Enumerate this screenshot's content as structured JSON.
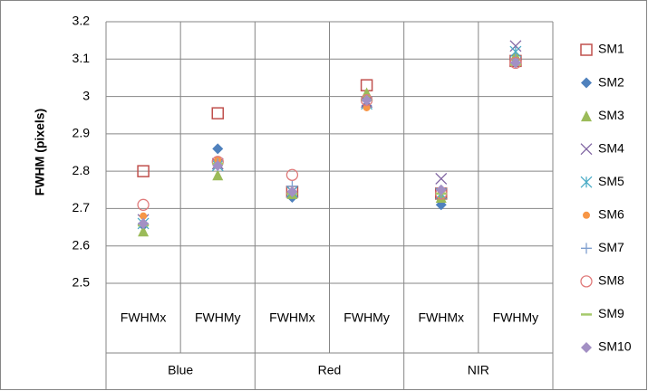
{
  "chart_data": {
    "type": "scatter",
    "y_label": "FWHM (pixels)",
    "categories": [
      "FWHMx",
      "FWHMy",
      "FWHMx",
      "FWHMy",
      "FWHMx",
      "FWHMy"
    ],
    "category_groups": [
      "Blue",
      "Red",
      "NIR"
    ],
    "ylim": [
      2.5,
      3.2
    ],
    "yticks": [
      2.5,
      2.6,
      2.7,
      2.8,
      2.9,
      3,
      3.1,
      3.2
    ],
    "grid": true,
    "legend": "right",
    "series": [
      {
        "name": "SM1",
        "color": "#c0504d",
        "marker": "square-open",
        "values": [
          2.8,
          2.955,
          2.745,
          3.03,
          2.74,
          3.095
        ]
      },
      {
        "name": "SM2",
        "color": "#4f81bd",
        "marker": "diamond",
        "values": [
          2.655,
          2.86,
          2.73,
          2.975,
          2.71,
          3.09
        ]
      },
      {
        "name": "SM3",
        "color": "#9bbb59",
        "marker": "triangle",
        "values": [
          2.64,
          2.79,
          2.74,
          3.01,
          2.73,
          3.11
        ]
      },
      {
        "name": "SM4",
        "color": "#8064a2",
        "marker": "x",
        "values": [
          2.67,
          2.82,
          2.745,
          2.985,
          2.78,
          3.135
        ]
      },
      {
        "name": "SM5",
        "color": "#4bacc6",
        "marker": "star",
        "values": [
          2.66,
          2.815,
          2.745,
          2.98,
          2.74,
          3.12
        ]
      },
      {
        "name": "SM6",
        "color": "#f79646",
        "marker": "circle",
        "values": [
          2.68,
          2.83,
          2.745,
          2.97,
          2.745,
          3.09
        ]
      },
      {
        "name": "SM7",
        "color": "#7f9fcf",
        "marker": "plus",
        "values": [
          2.66,
          2.82,
          2.76,
          2.99,
          2.74,
          3.1
        ]
      },
      {
        "name": "SM8",
        "color": "#e07a7a",
        "marker": "circle-open",
        "values": [
          2.71,
          2.825,
          2.79,
          2.99,
          2.74,
          3.09
        ]
      },
      {
        "name": "SM9",
        "color": "#a5c96a",
        "marker": "dash",
        "values": [
          2.655,
          2.82,
          2.74,
          2.99,
          2.74,
          3.085
        ]
      },
      {
        "name": "SM10",
        "color": "#a390c4",
        "marker": "diamond",
        "values": [
          2.66,
          2.815,
          2.745,
          2.99,
          2.75,
          3.09
        ]
      }
    ]
  }
}
